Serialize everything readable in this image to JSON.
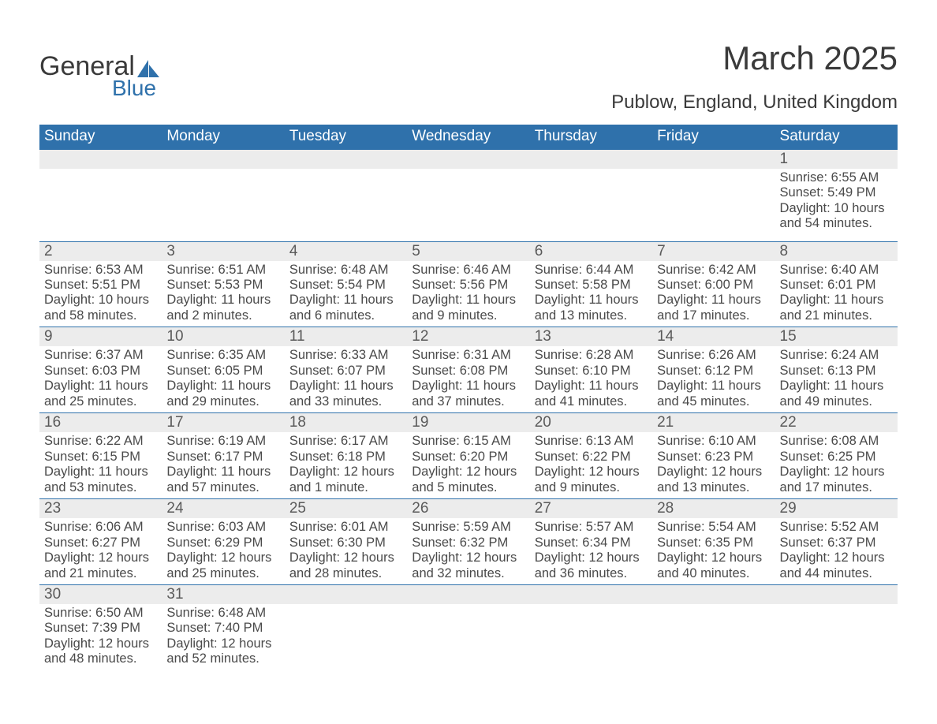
{
  "logo": {
    "text1": "General",
    "text2": "Blue",
    "shape_color": "#2f71ab"
  },
  "title": "March 2025",
  "location": "Publow, England, United Kingdom",
  "colors": {
    "header_bg": "#2f71ab",
    "header_text": "#ffffff",
    "daynum_bg": "#ececec",
    "row_border": "#2f71ab",
    "body_text": "#4a4a4a",
    "title_text": "#3a3a3a",
    "page_bg": "#ffffff"
  },
  "typography": {
    "title_fontsize": 42,
    "location_fontsize": 24,
    "header_fontsize": 19,
    "daynum_fontsize": 19,
    "detail_fontsize": 16.5,
    "font_family": "Arial"
  },
  "weekdays": [
    "Sunday",
    "Monday",
    "Tuesday",
    "Wednesday",
    "Thursday",
    "Friday",
    "Saturday"
  ],
  "weeks": [
    [
      null,
      null,
      null,
      null,
      null,
      null,
      {
        "n": "1",
        "sr": "6:55 AM",
        "ss": "5:49 PM",
        "dl": "10 hours and 54 minutes."
      }
    ],
    [
      {
        "n": "2",
        "sr": "6:53 AM",
        "ss": "5:51 PM",
        "dl": "10 hours and 58 minutes."
      },
      {
        "n": "3",
        "sr": "6:51 AM",
        "ss": "5:53 PM",
        "dl": "11 hours and 2 minutes."
      },
      {
        "n": "4",
        "sr": "6:48 AM",
        "ss": "5:54 PM",
        "dl": "11 hours and 6 minutes."
      },
      {
        "n": "5",
        "sr": "6:46 AM",
        "ss": "5:56 PM",
        "dl": "11 hours and 9 minutes."
      },
      {
        "n": "6",
        "sr": "6:44 AM",
        "ss": "5:58 PM",
        "dl": "11 hours and 13 minutes."
      },
      {
        "n": "7",
        "sr": "6:42 AM",
        "ss": "6:00 PM",
        "dl": "11 hours and 17 minutes."
      },
      {
        "n": "8",
        "sr": "6:40 AM",
        "ss": "6:01 PM",
        "dl": "11 hours and 21 minutes."
      }
    ],
    [
      {
        "n": "9",
        "sr": "6:37 AM",
        "ss": "6:03 PM",
        "dl": "11 hours and 25 minutes."
      },
      {
        "n": "10",
        "sr": "6:35 AM",
        "ss": "6:05 PM",
        "dl": "11 hours and 29 minutes."
      },
      {
        "n": "11",
        "sr": "6:33 AM",
        "ss": "6:07 PM",
        "dl": "11 hours and 33 minutes."
      },
      {
        "n": "12",
        "sr": "6:31 AM",
        "ss": "6:08 PM",
        "dl": "11 hours and 37 minutes."
      },
      {
        "n": "13",
        "sr": "6:28 AM",
        "ss": "6:10 PM",
        "dl": "11 hours and 41 minutes."
      },
      {
        "n": "14",
        "sr": "6:26 AM",
        "ss": "6:12 PM",
        "dl": "11 hours and 45 minutes."
      },
      {
        "n": "15",
        "sr": "6:24 AM",
        "ss": "6:13 PM",
        "dl": "11 hours and 49 minutes."
      }
    ],
    [
      {
        "n": "16",
        "sr": "6:22 AM",
        "ss": "6:15 PM",
        "dl": "11 hours and 53 minutes."
      },
      {
        "n": "17",
        "sr": "6:19 AM",
        "ss": "6:17 PM",
        "dl": "11 hours and 57 minutes."
      },
      {
        "n": "18",
        "sr": "6:17 AM",
        "ss": "6:18 PM",
        "dl": "12 hours and 1 minute."
      },
      {
        "n": "19",
        "sr": "6:15 AM",
        "ss": "6:20 PM",
        "dl": "12 hours and 5 minutes."
      },
      {
        "n": "20",
        "sr": "6:13 AM",
        "ss": "6:22 PM",
        "dl": "12 hours and 9 minutes."
      },
      {
        "n": "21",
        "sr": "6:10 AM",
        "ss": "6:23 PM",
        "dl": "12 hours and 13 minutes."
      },
      {
        "n": "22",
        "sr": "6:08 AM",
        "ss": "6:25 PM",
        "dl": "12 hours and 17 minutes."
      }
    ],
    [
      {
        "n": "23",
        "sr": "6:06 AM",
        "ss": "6:27 PM",
        "dl": "12 hours and 21 minutes."
      },
      {
        "n": "24",
        "sr": "6:03 AM",
        "ss": "6:29 PM",
        "dl": "12 hours and 25 minutes."
      },
      {
        "n": "25",
        "sr": "6:01 AM",
        "ss": "6:30 PM",
        "dl": "12 hours and 28 minutes."
      },
      {
        "n": "26",
        "sr": "5:59 AM",
        "ss": "6:32 PM",
        "dl": "12 hours and 32 minutes."
      },
      {
        "n": "27",
        "sr": "5:57 AM",
        "ss": "6:34 PM",
        "dl": "12 hours and 36 minutes."
      },
      {
        "n": "28",
        "sr": "5:54 AM",
        "ss": "6:35 PM",
        "dl": "12 hours and 40 minutes."
      },
      {
        "n": "29",
        "sr": "5:52 AM",
        "ss": "6:37 PM",
        "dl": "12 hours and 44 minutes."
      }
    ],
    [
      {
        "n": "30",
        "sr": "6:50 AM",
        "ss": "7:39 PM",
        "dl": "12 hours and 48 minutes."
      },
      {
        "n": "31",
        "sr": "6:48 AM",
        "ss": "7:40 PM",
        "dl": "12 hours and 52 minutes."
      },
      null,
      null,
      null,
      null,
      null
    ]
  ],
  "labels": {
    "sunrise": "Sunrise: ",
    "sunset": "Sunset: ",
    "daylight": "Daylight: "
  }
}
